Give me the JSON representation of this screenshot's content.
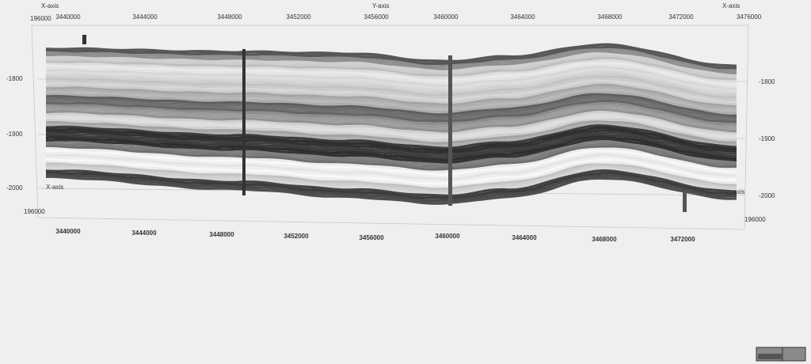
{
  "viewer": {
    "top_axis": {
      "left_title": "X-axis",
      "left_value": "196000",
      "center_title": "Y-axis",
      "right_title": "X-axis",
      "right_value": "3476000",
      "ticks": [
        "3440000",
        "3444000",
        "3448000",
        "3452000",
        "3456000",
        "3460000",
        "3464000",
        "3468000",
        "3472000"
      ]
    },
    "left_axis": {
      "ticks": [
        "-1800",
        "-1900",
        "-2000"
      ],
      "title": "X-axis",
      "value": "196000"
    },
    "right_axis": {
      "ticks": [
        "-1800",
        "-1900",
        "-2000"
      ],
      "title": "axis",
      "value": "196000"
    },
    "bottom_axis": {
      "ticks": [
        "3440000",
        "3444000",
        "3448000",
        "3452000",
        "3456000",
        "3460000",
        "3464000",
        "3468000",
        "3472000"
      ]
    }
  }
}
